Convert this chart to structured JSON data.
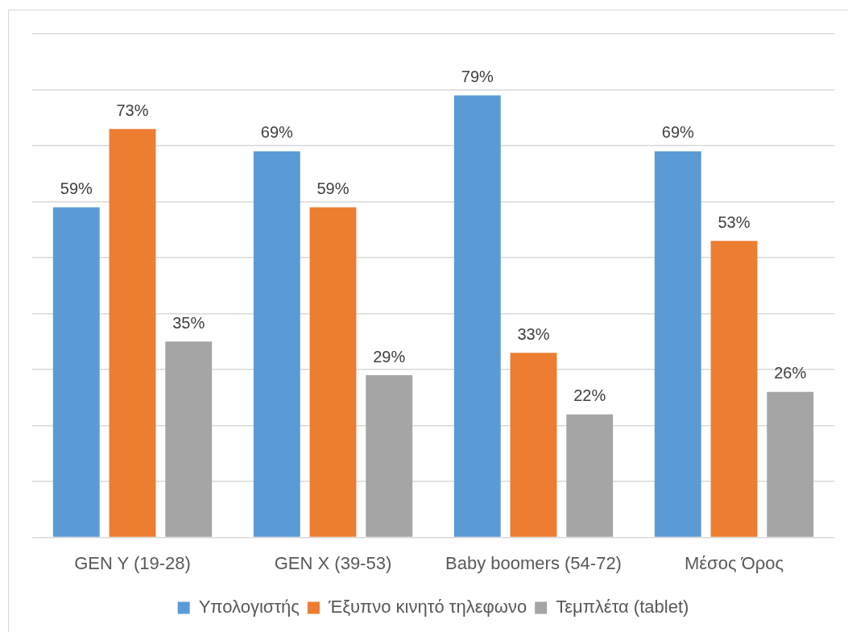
{
  "chart_data": {
    "type": "bar",
    "categories": [
      "GEN Y (19-28)",
      "GEN X (39-53)",
      "Baby boomers (54-72)",
      "Μέσος Όρος"
    ],
    "series": [
      {
        "name": "Υπολογιστής",
        "color": "#5b9bd5",
        "values": [
          59,
          69,
          79,
          69
        ],
        "value_labels": [
          "59%",
          "69%",
          "79%",
          "69%"
        ]
      },
      {
        "name": "Έξυπνο κινητό τηλεφωνο",
        "color": "#ed7d31",
        "values": [
          73,
          59,
          33,
          53
        ],
        "value_labels": [
          "73%",
          "59%",
          "33%",
          "53%"
        ]
      },
      {
        "name": "Τεμπλέτα (tablet)",
        "color": "#a5a5a5",
        "values": [
          35,
          29,
          22,
          26
        ],
        "value_labels": [
          "35%",
          "29%",
          "22%",
          "26%"
        ]
      }
    ],
    "ylim": [
      0,
      90
    ],
    "yticks": [
      {
        "value": 0,
        "label": null
      },
      {
        "value": 10,
        "label": null
      },
      {
        "value": 20,
        "label": null
      },
      {
        "value": 30,
        "label": null
      },
      {
        "value": 40,
        "label": null
      },
      {
        "value": 50,
        "label": null
      },
      {
        "value": 60,
        "label": null
      },
      {
        "value": 70,
        "label": null
      },
      {
        "value": 80,
        "label": null
      },
      {
        "value": 90,
        "label": null
      }
    ],
    "grid": "y",
    "legend": "bottom",
    "tick_labels": "x"
  }
}
